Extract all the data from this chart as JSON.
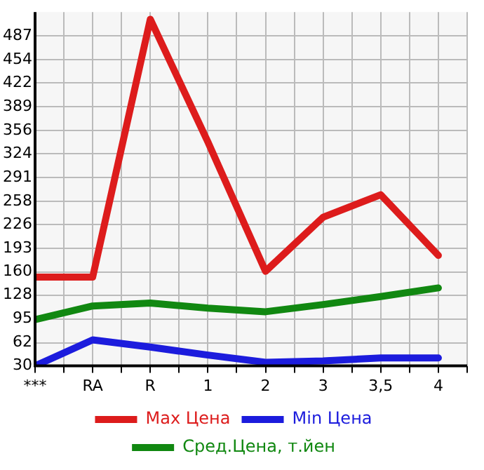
{
  "chart_data": {
    "type": "line",
    "categories": [
      "***",
      "RA",
      "R",
      "1",
      "2",
      "3",
      "3,5",
      "4"
    ],
    "series": [
      {
        "name": "Max Цена",
        "color": "#dd1c1c",
        "values": [
          153,
          153,
          510,
          340,
          161,
          236,
          267,
          183
        ]
      },
      {
        "name": "Min Цена",
        "color": "#1c1cdd",
        "values": [
          30,
          66,
          56,
          45,
          35,
          37,
          41,
          41
        ]
      },
      {
        "name": "Сред.Цена, т.йен",
        "color": "#118811",
        "values": [
          94,
          113,
          117,
          110,
          105,
          115,
          126,
          138
        ]
      }
    ],
    "ylim": [
      30,
      520
    ],
    "yticks": [
      30,
      62,
      95,
      128,
      160,
      193,
      226,
      258,
      291,
      324,
      356,
      389,
      422,
      454,
      487
    ],
    "grid": true,
    "legend": "bottom",
    "marker": "none",
    "line_style": "solid"
  }
}
